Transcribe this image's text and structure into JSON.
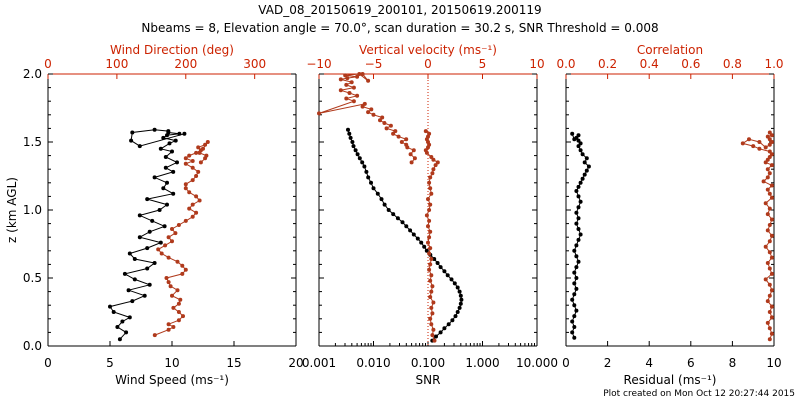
{
  "header": {
    "title_line1": "VAD_08_20150619_200101, 20150619.200119",
    "title_line2": "Nbeams = 8, Elevation angle = 70.0°, scan duration = 30.2 s, SNR Threshold = 0.008"
  },
  "footer": {
    "created": "Plot created on Mon Oct 12 20:27:44 2015"
  },
  "colors": {
    "primary": "#000000",
    "secondary": "#b03a1c",
    "secondary_axis": "#cc2200"
  },
  "chart_data": [
    {
      "type": "line",
      "ylabel": "z (km AGL)",
      "ylim": [
        0,
        2.0
      ],
      "yticks": [
        "0.0",
        "0.5",
        "1.0",
        "1.5",
        "2.0"
      ],
      "xlabel": "Wind Speed (ms⁻¹)",
      "xlim": [
        0,
        20
      ],
      "xticks": [
        "0",
        "5",
        "10",
        "15",
        "20"
      ],
      "x2label": "Wind Direction (deg)",
      "x2lim": [
        0,
        360
      ],
      "x2ticks": [
        "0",
        "100",
        "200",
        "300"
      ],
      "series": [
        {
          "axis": "bottom",
          "x": [
            5.8,
            6.3,
            5.6,
            6.0,
            6.6,
            5.3,
            5.0,
            6.8,
            7.8,
            6.5,
            8.2,
            7.0,
            6.2,
            8.0,
            8.6,
            7.0,
            6.6,
            8.0,
            9.1,
            7.4,
            8.2,
            9.4,
            8.4,
            7.4,
            9.0,
            9.6,
            8.0,
            10.1,
            9.3,
            9.6,
            8.6,
            10.1,
            9.5,
            10.4,
            9.5,
            10.0,
            9.1,
            9.8,
            10.3,
            9.3,
            9.6,
            10.6,
            9.7,
            9.7,
            8.6,
            6.8,
            6.7,
            7.4,
            11.0
          ],
          "y": [
            0.05,
            0.1,
            0.14,
            0.18,
            0.21,
            0.25,
            0.29,
            0.33,
            0.37,
            0.41,
            0.45,
            0.49,
            0.53,
            0.57,
            0.61,
            0.64,
            0.68,
            0.72,
            0.76,
            0.8,
            0.84,
            0.88,
            0.92,
            0.96,
            1.0,
            1.04,
            1.08,
            1.12,
            1.16,
            1.2,
            1.24,
            1.28,
            1.31,
            1.35,
            1.39,
            1.43,
            1.45,
            1.49,
            1.51,
            1.53,
            1.55,
            1.56,
            1.57,
            1.58,
            1.59,
            1.57,
            1.51,
            1.47,
            1.56
          ]
        },
        {
          "axis": "top",
          "x": [
            155,
            175,
            182,
            175,
            190,
            196,
            190,
            182,
            190,
            192,
            180,
            188,
            178,
            175,
            172,
            195,
            200,
            195,
            188,
            175,
            165,
            160,
            170,
            180,
            175,
            185,
            180,
            190,
            200,
            210,
            215,
            205,
            210,
            220,
            215,
            205,
            200,
            200,
            210,
            215,
            218,
            210,
            200,
            210,
            200,
            205,
            215,
            222,
            218,
            228,
            232,
            225,
            220,
            230,
            228,
            222
          ],
          "y": [
            0.08,
            0.12,
            0.14,
            0.16,
            0.19,
            0.22,
            0.25,
            0.28,
            0.31,
            0.34,
            0.37,
            0.41,
            0.44,
            0.47,
            0.5,
            0.53,
            0.56,
            0.59,
            0.62,
            0.65,
            0.68,
            0.71,
            0.74,
            0.77,
            0.8,
            0.83,
            0.86,
            0.89,
            0.92,
            0.95,
            0.98,
            1.01,
            1.04,
            1.07,
            1.1,
            1.13,
            1.16,
            1.19,
            1.22,
            1.25,
            1.28,
            1.31,
            1.34,
            1.36,
            1.38,
            1.4,
            1.42,
            1.44,
            1.46,
            1.48,
            1.5,
            1.45,
            1.42,
            1.4,
            1.38,
            1.35
          ]
        }
      ]
    },
    {
      "type": "line",
      "ylim": [
        0,
        2.0
      ],
      "xlabel": "SNR",
      "xscale": "log",
      "xlim": [
        0.001,
        10
      ],
      "xticks": [
        "0.001",
        "0.010",
        "0.100",
        "1.000",
        "10.000"
      ],
      "x2label": "Vertical velocity (ms⁻¹)",
      "x2lim": [
        -10,
        10
      ],
      "x2ticks": [
        "−10",
        "−5",
        "0",
        "5",
        "10"
      ],
      "reference_line": {
        "axis": "top",
        "x": 0,
        "style": "dotted"
      },
      "series": [
        {
          "axis": "bottom",
          "x": [
            0.12,
            0.14,
            0.17,
            0.2,
            0.24,
            0.28,
            0.32,
            0.35,
            0.38,
            0.4,
            0.41,
            0.4,
            0.38,
            0.35,
            0.31,
            0.27,
            0.23,
            0.2,
            0.17,
            0.15,
            0.13,
            0.11,
            0.095,
            0.085,
            0.075,
            0.065,
            0.055,
            0.047,
            0.04,
            0.034,
            0.028,
            0.023,
            0.019,
            0.016,
            0.014,
            0.012,
            0.01,
            0.009,
            0.008,
            0.0074,
            0.0068,
            0.0062,
            0.0056,
            0.0051,
            0.0047,
            0.0043,
            0.0041,
            0.0038,
            0.0036,
            0.0034
          ],
          "y": [
            0.04,
            0.07,
            0.1,
            0.13,
            0.16,
            0.19,
            0.22,
            0.25,
            0.28,
            0.31,
            0.34,
            0.37,
            0.4,
            0.43,
            0.46,
            0.49,
            0.52,
            0.55,
            0.58,
            0.61,
            0.64,
            0.67,
            0.7,
            0.73,
            0.76,
            0.79,
            0.82,
            0.85,
            0.88,
            0.91,
            0.94,
            0.97,
            1.0,
            1.04,
            1.08,
            1.12,
            1.16,
            1.2,
            1.24,
            1.28,
            1.32,
            1.35,
            1.38,
            1.41,
            1.44,
            1.47,
            1.5,
            1.53,
            1.56,
            1.59
          ]
        },
        {
          "axis": "top",
          "x": [
            0.6,
            0.4,
            0.5,
            0.3,
            0.2,
            0.4,
            0.3,
            0.5,
            0.2,
            0.3,
            0.4,
            0.2,
            0.3,
            0.1,
            0.2,
            0.3,
            0.1,
            0.2,
            0.0,
            0.1,
            0.2,
            0.0,
            0.1,
            -0.1,
            0.1,
            0.2,
            0.0,
            0.3,
            0.2,
            0.1,
            0.2,
            0.4,
            0.5,
            0.7,
            0.9,
            0.5,
            0.3,
            -0.1,
            -0.2,
            0.0,
            0.1,
            0.0,
            -0.1,
            0.0,
            0.1,
            -0.2
          ],
          "y": [
            0.04,
            0.08,
            0.12,
            0.16,
            0.2,
            0.24,
            0.28,
            0.32,
            0.36,
            0.4,
            0.44,
            0.48,
            0.52,
            0.56,
            0.6,
            0.64,
            0.68,
            0.72,
            0.76,
            0.8,
            0.84,
            0.88,
            0.92,
            0.96,
            1.0,
            1.04,
            1.08,
            1.12,
            1.16,
            1.2,
            1.24,
            1.27,
            1.3,
            1.33,
            1.35,
            1.37,
            1.39,
            1.42,
            1.44,
            1.46,
            1.48,
            1.5,
            1.52,
            1.54,
            1.56,
            1.58
          ]
        },
        {
          "axis": "top",
          "x": [
            -1.5,
            -1.2,
            -1.6,
            -1.3,
            -1.9,
            -2.0,
            -2.4,
            -2.0,
            -2.7,
            -3.2,
            -3.0,
            -3.8,
            -3.4,
            -4.0,
            -4.4,
            -4.2,
            -5.0,
            -5.5,
            -5.2,
            -6.0,
            -5.8,
            -10.0,
            -6.8,
            -7.5,
            -6.5,
            -7.2,
            -8.0,
            -6.8,
            -7.5,
            -7.0,
            -8.0,
            -7.4,
            -6.5,
            -7.6,
            -6.3,
            -5.5,
            -6.0
          ],
          "y": [
            1.35,
            1.38,
            1.41,
            1.44,
            1.46,
            1.48,
            1.5,
            1.52,
            1.54,
            1.56,
            1.58,
            1.6,
            1.62,
            1.64,
            1.66,
            1.68,
            1.7,
            1.72,
            1.74,
            1.76,
            1.78,
            1.71,
            1.8,
            1.82,
            1.84,
            1.86,
            1.88,
            1.9,
            1.92,
            1.94,
            1.96,
            1.97,
            1.98,
            1.99,
            2.0,
            1.95,
            2.0
          ]
        }
      ]
    },
    {
      "type": "line",
      "ylim": [
        0,
        2.0
      ],
      "xlabel": "Residual (ms⁻¹)",
      "xlim": [
        0,
        10
      ],
      "xticks": [
        "0",
        "2",
        "4",
        "6",
        "8",
        "10"
      ],
      "x2label": "Correlation",
      "x2lim": [
        0,
        1.0
      ],
      "x2ticks": [
        "0.0",
        "0.2",
        "0.4",
        "0.6",
        "0.8",
        "1.0"
      ],
      "series": [
        {
          "axis": "bottom",
          "x": [
            0.4,
            0.3,
            0.4,
            0.3,
            0.4,
            0.5,
            0.4,
            0.3,
            0.4,
            0.5,
            0.4,
            0.5,
            0.4,
            0.5,
            0.6,
            0.5,
            0.4,
            0.5,
            0.6,
            0.7,
            0.6,
            0.5,
            0.6,
            0.5,
            0.6,
            0.7,
            0.6,
            0.5,
            0.6,
            0.7,
            0.8,
            0.9,
            1.0,
            1.1,
            0.9,
            1.0,
            0.8,
            0.7,
            0.6,
            0.7,
            0.6,
            0.5,
            0.6,
            0.4,
            0.3
          ],
          "y": [
            0.06,
            0.1,
            0.14,
            0.18,
            0.22,
            0.26,
            0.3,
            0.34,
            0.38,
            0.42,
            0.46,
            0.5,
            0.54,
            0.58,
            0.62,
            0.66,
            0.7,
            0.74,
            0.78,
            0.82,
            0.86,
            0.9,
            0.94,
            0.98,
            1.02,
            1.06,
            1.1,
            1.14,
            1.17,
            1.2,
            1.23,
            1.26,
            1.29,
            1.32,
            1.35,
            1.38,
            1.41,
            1.44,
            1.47,
            1.49,
            1.51,
            1.53,
            1.55,
            1.52,
            1.56
          ]
        },
        {
          "axis": "top",
          "x": [
            0.98,
            0.99,
            0.98,
            0.97,
            0.99,
            0.98,
            0.99,
            0.97,
            0.98,
            0.99,
            0.98,
            0.96,
            0.99,
            0.98,
            0.97,
            0.99,
            0.98,
            0.96,
            0.98,
            0.99,
            0.97,
            0.98,
            0.99,
            0.97,
            0.98,
            0.96,
            0.99,
            0.98,
            0.97,
            0.99,
            0.95,
            0.97,
            0.98,
            0.97,
            0.99,
            0.96,
            0.97,
            0.98,
            0.99,
            0.98,
            0.93,
            0.9,
            0.85,
            0.88,
            0.93,
            0.96,
            0.98,
            0.99,
            0.98,
            0.97,
            0.99,
            0.98
          ],
          "y": [
            0.05,
            0.09,
            0.13,
            0.17,
            0.21,
            0.25,
            0.29,
            0.33,
            0.37,
            0.41,
            0.45,
            0.49,
            0.53,
            0.57,
            0.61,
            0.65,
            0.69,
            0.73,
            0.77,
            0.81,
            0.85,
            0.89,
            0.93,
            0.97,
            1.01,
            1.05,
            1.09,
            1.12,
            1.15,
            1.18,
            1.21,
            1.24,
            1.27,
            1.3,
            1.33,
            1.35,
            1.37,
            1.39,
            1.41,
            1.43,
            1.45,
            1.47,
            1.49,
            1.52,
            1.5,
            1.46,
            1.48,
            1.5,
            1.52,
            1.54,
            1.55,
            1.57
          ]
        }
      ]
    }
  ]
}
